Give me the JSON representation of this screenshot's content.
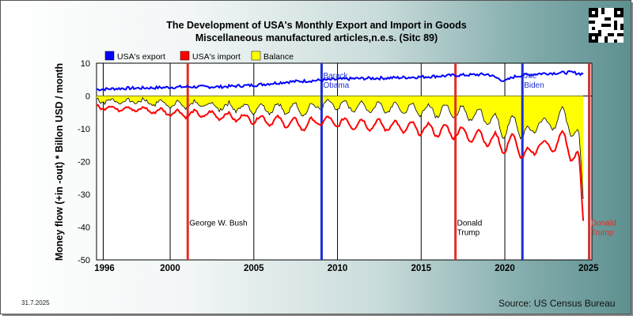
{
  "title_line1": "The Development of USA's Monthly Export and Import in Goods",
  "title_line2": "Miscellaneous manufactured articles,n.e.s. (Sitc 89)",
  "date_stamp": "31.7.2025",
  "source": "Source: US Census Bureau",
  "colors": {
    "export": "#0000ff",
    "import": "#ff0000",
    "balance": "#ffff00",
    "plot_bg": "#ffffff",
    "term_red": "#e0302a",
    "term_blue": "#1c2fd6"
  },
  "chart_data": {
    "type": "area",
    "title": "The Development of USA's Monthly Export and Import in Goods",
    "subtitle": "Miscellaneous manufactured articles,n.e.s. (Sitc 89)",
    "xlabel": "",
    "ylabel": "Money flow (+in -out) * Billon USD / month",
    "xlim": [
      1995.6,
      2025.2
    ],
    "ylim": [
      -50,
      10
    ],
    "grid": true,
    "legend_position": "top-left",
    "x_ticks": [
      "1996",
      "2000",
      "2005",
      "2010",
      "2015",
      "2020",
      "2025"
    ],
    "x_tick_values": [
      1996,
      2000,
      2005,
      2010,
      2015,
      2020,
      2025
    ],
    "y_ticks": [
      10,
      0,
      -10,
      -20,
      -30,
      -40,
      -50
    ],
    "legend": [
      {
        "label": "USA's export",
        "color": "#0000ff"
      },
      {
        "label": "USA's import",
        "color": "#ff0000"
      },
      {
        "label": "Balance",
        "color": "#ffff00"
      }
    ],
    "series": [
      {
        "name": "USA's export",
        "x": [
          1995.6,
          1997,
          1999,
          2001,
          2003,
          2005,
          2007,
          2009,
          2011,
          2013,
          2015,
          2017,
          2019,
          2020.0,
          2020.5,
          2021,
          2022,
          2023,
          2024,
          2024.5
        ],
        "values": [
          2.0,
          2.3,
          2.5,
          2.8,
          2.8,
          3.3,
          4.3,
          4.8,
          5.3,
          5.5,
          5.8,
          6.3,
          6.6,
          4.5,
          5.8,
          6.3,
          6.8,
          7.0,
          7.2,
          6.8
        ]
      },
      {
        "name": "USA's import",
        "x": [
          1995.6,
          1996,
          1998,
          2000,
          2001,
          2002,
          2003,
          2005,
          2007,
          2008,
          2009,
          2011,
          2013,
          2015,
          2017,
          2019,
          2020.0,
          2020.5,
          2021,
          2021.5,
          2022,
          2022.5,
          2023,
          2023.5,
          2024,
          2024.4,
          2024.5,
          2024.6,
          2024.7
        ],
        "values": [
          -3,
          -3.5,
          -4,
          -5,
          -5.5,
          -5.5,
          -6,
          -7,
          -8,
          -9,
          -7.5,
          -8.5,
          -9,
          -10,
          -11,
          -13,
          -15,
          -14,
          -16,
          -20,
          -13,
          -17,
          -14,
          -13,
          -17,
          -20,
          -25,
          -33,
          -39
        ]
      }
    ],
    "markers": [
      {
        "x": 2001.05,
        "color": "#e0302a",
        "label": "George W. Bush",
        "label_y": -40
      },
      {
        "x": 2009.05,
        "color": "#1c2fd6",
        "label": "Barack Obama",
        "label_y": 5
      },
      {
        "x": 2017.05,
        "color": "#e0302a",
        "label": "Donald Trump",
        "label_y": -40
      },
      {
        "x": 2021.05,
        "color": "#1c2fd6",
        "label": "Joe Biden",
        "label_y": 5
      },
      {
        "x": 2025.05,
        "color": "#e0302a",
        "label": "Donald Trump",
        "label_y": -40
      }
    ]
  }
}
